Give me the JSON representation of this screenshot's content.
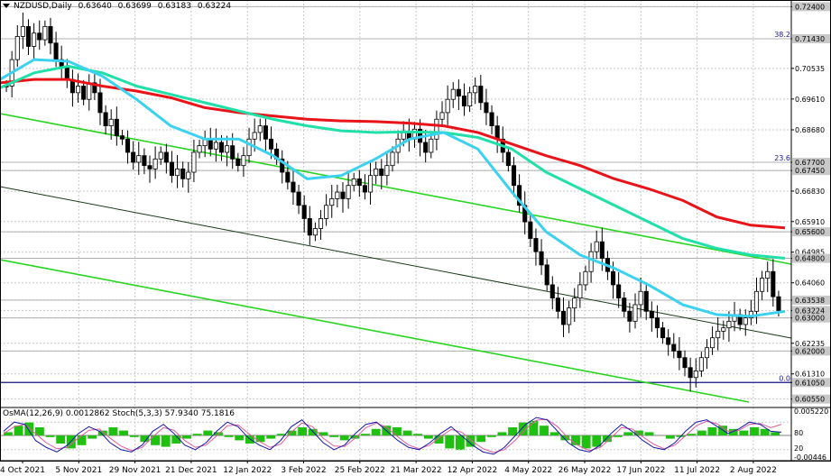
{
  "header": {
    "symbol": "NZDUSD,Daily",
    "open": "0.63640",
    "high": "0.63699",
    "low": "0.63183",
    "close": "0.63224"
  },
  "indicator_header": {
    "osma": "OsMA(12,26,9) 0.0012862",
    "stoch": "Stoch(5,3,3) 57.9340 75.1816"
  },
  "colors": {
    "background": "#ffffff",
    "grid": "#c8c8c8",
    "candle": "#000000",
    "ema_red": "#e8141a",
    "ema_teal": "#1fe0a8",
    "ema_cyan": "#3ad2f0",
    "channel_green": "#27d61e",
    "channel_dark": "#1a3a1a",
    "level_line": "#1a1a8c",
    "price_label_bg": "#c8c8c8",
    "osma_bar": "#20c010",
    "stoch_main": "#1a1aa8",
    "stoch_signal": "#e05aa0"
  },
  "chart_data": {
    "type": "candlestick",
    "timeframe": "Daily",
    "ylim": [
      0.6035,
      0.726
    ],
    "y_axis_labels": [
      "0.72400",
      "0.71430",
      "0.70535",
      "0.69610",
      "0.68680",
      "0.67700",
      "0.67450",
      "0.66830",
      "0.65910",
      "0.65600",
      "0.64985",
      "0.64800",
      "0.64060",
      "0.63538",
      "0.63224",
      "0.63000",
      "0.62235",
      "0.62000",
      "0.61310",
      "0.61050",
      "0.60550"
    ],
    "highlighted_labels": [
      "0.72400",
      "0.71430",
      "0.67700",
      "0.67450",
      "0.65600",
      "0.64800",
      "0.63538",
      "0.63224",
      "0.63000",
      "0.62000",
      "0.61050",
      "0.60550"
    ],
    "x_axis_labels": [
      "4 Oct 2021",
      "5 Nov 2021",
      "29 Nov 2021",
      "21 Dec 2021",
      "12 Jan 2022",
      "3 Feb 2022",
      "25 Feb 2022",
      "21 Mar 2022",
      "12 Apr 2022",
      "4 May 2022",
      "26 May 2022",
      "17 Jun 2022",
      "11 Jul 2022",
      "2 Aug 2022"
    ],
    "fib_levels": [
      {
        "label": "38.2",
        "price": 0.7143
      },
      {
        "label": "23.6",
        "price": 0.677
      },
      {
        "label": "0.0",
        "price": 0.6105
      }
    ],
    "horizontal_levels": [
      0.724,
      0.7143,
      0.677,
      0.6745,
      0.656,
      0.648,
      0.63538,
      0.63,
      0.62,
      0.6105
    ],
    "close_series": [
      0.7,
      0.708,
      0.715,
      0.718,
      0.712,
      0.716,
      0.714,
      0.718,
      0.713,
      0.708,
      0.706,
      0.702,
      0.698,
      0.7,
      0.696,
      0.701,
      0.698,
      0.692,
      0.688,
      0.69,
      0.685,
      0.684,
      0.68,
      0.677,
      0.679,
      0.676,
      0.675,
      0.678,
      0.68,
      0.677,
      0.673,
      0.675,
      0.672,
      0.674,
      0.68,
      0.682,
      0.684,
      0.681,
      0.683,
      0.68,
      0.682,
      0.678,
      0.676,
      0.679,
      0.684,
      0.686,
      0.688,
      0.684,
      0.681,
      0.678,
      0.674,
      0.671,
      0.668,
      0.664,
      0.66,
      0.655,
      0.657,
      0.66,
      0.664,
      0.666,
      0.668,
      0.666,
      0.67,
      0.672,
      0.67,
      0.668,
      0.673,
      0.675,
      0.673,
      0.676,
      0.68,
      0.684,
      0.686,
      0.684,
      0.687,
      0.683,
      0.68,
      0.684,
      0.69,
      0.692,
      0.696,
      0.699,
      0.697,
      0.694,
      0.698,
      0.7,
      0.695,
      0.692,
      0.688,
      0.684,
      0.68,
      0.676,
      0.67,
      0.664,
      0.659,
      0.654,
      0.65,
      0.646,
      0.64,
      0.636,
      0.632,
      0.628,
      0.633,
      0.636,
      0.64,
      0.644,
      0.65,
      0.653,
      0.648,
      0.644,
      0.64,
      0.636,
      0.632,
      0.629,
      0.634,
      0.638,
      0.632,
      0.63,
      0.627,
      0.624,
      0.622,
      0.62,
      0.618,
      0.615,
      0.612,
      0.614,
      0.618,
      0.621,
      0.624,
      0.626,
      0.627,
      0.629,
      0.631,
      0.628,
      0.63,
      0.632,
      0.638,
      0.642,
      0.644,
      0.6364,
      0.63224
    ],
    "moving_averages": [
      {
        "color_key": "ema_red",
        "values": [
          0.701,
          0.702,
          0.702,
          0.7,
          0.6985,
          0.6965,
          0.6935,
          0.692,
          0.691,
          0.69,
          0.6895,
          0.6893,
          0.6888,
          0.688,
          0.686,
          0.6825,
          0.679,
          0.676,
          0.672,
          0.669,
          0.6655,
          0.6605,
          0.658,
          0.6572
        ]
      },
      {
        "color_key": "ema_teal",
        "values": [
          0.6995,
          0.704,
          0.706,
          0.704,
          0.7,
          0.6975,
          0.695,
          0.6925,
          0.69,
          0.688,
          0.6865,
          0.686,
          0.6862,
          0.686,
          0.6845,
          0.681,
          0.674,
          0.669,
          0.664,
          0.659,
          0.654,
          0.651,
          0.649,
          0.648
        ]
      },
      {
        "color_key": "ema_cyan",
        "values": [
          0.702,
          0.708,
          0.7075,
          0.703,
          0.696,
          0.688,
          0.684,
          0.684,
          0.679,
          0.672,
          0.673,
          0.678,
          0.684,
          0.686,
          0.681,
          0.668,
          0.656,
          0.649,
          0.645,
          0.64,
          0.634,
          0.631,
          0.6305,
          0.632
        ]
      }
    ],
    "osma_values": [
      0.2,
      0.6,
      0.8,
      0.5,
      -0.1,
      -0.5,
      -0.8,
      -0.6,
      -0.2,
      0.3,
      0.5,
      0.3,
      -0.1,
      -0.4,
      -0.6,
      -0.7,
      -0.5,
      -0.2,
      0.1,
      0.3,
      0.2,
      -0.1,
      -0.3,
      -0.5,
      -0.4,
      -0.2,
      0.1,
      0.3,
      0.5,
      0.4,
      0.2,
      -0.1,
      -0.3,
      -0.2,
      0.1,
      0.4,
      0.6,
      0.5,
      0.3,
      0.1,
      -0.2,
      -0.5,
      -0.8,
      -0.9,
      -0.7,
      -0.4,
      -0.1,
      0.2,
      0.5,
      0.8,
      0.9,
      0.6,
      0.2,
      -0.3,
      -0.6,
      -0.8,
      -0.7,
      -0.4,
      -0.1,
      0.2,
      0.3,
      0.2,
      0.0,
      -0.2,
      -0.1,
      0.1,
      0.3,
      0.5,
      0.6,
      0.4,
      0.3,
      0.5,
      0.4,
      0.2
    ],
    "stoch_main": [
      60,
      80,
      75,
      40,
      25,
      15,
      30,
      55,
      70,
      60,
      35,
      20,
      15,
      30,
      60,
      75,
      55,
      30,
      20,
      35,
      60,
      80,
      70,
      45,
      30,
      20,
      40,
      70,
      85,
      60,
      35,
      20,
      30,
      55,
      75,
      80,
      60,
      40,
      25,
      20,
      35,
      55,
      70,
      50,
      30,
      15,
      10,
      25,
      50,
      75,
      90,
      85,
      60,
      35,
      20,
      15,
      30,
      55,
      75,
      60,
      40,
      25,
      20,
      35,
      60,
      80,
      85,
      70,
      55,
      65,
      80,
      75,
      60,
      58
    ],
    "stoch_signal": [
      55,
      70,
      75,
      55,
      35,
      22,
      25,
      45,
      62,
      65,
      45,
      28,
      18,
      25,
      48,
      68,
      62,
      40,
      25,
      30,
      50,
      72,
      74,
      55,
      38,
      25,
      32,
      58,
      78,
      70,
      45,
      28,
      27,
      45,
      68,
      78,
      68,
      48,
      30,
      22,
      30,
      48,
      64,
      58,
      38,
      22,
      14,
      20,
      40,
      65,
      84,
      86,
      70,
      45,
      28,
      18,
      25,
      45,
      68,
      65,
      48,
      32,
      22,
      30,
      50,
      72,
      82,
      76,
      60,
      62,
      75,
      77,
      68,
      75
    ]
  }
}
